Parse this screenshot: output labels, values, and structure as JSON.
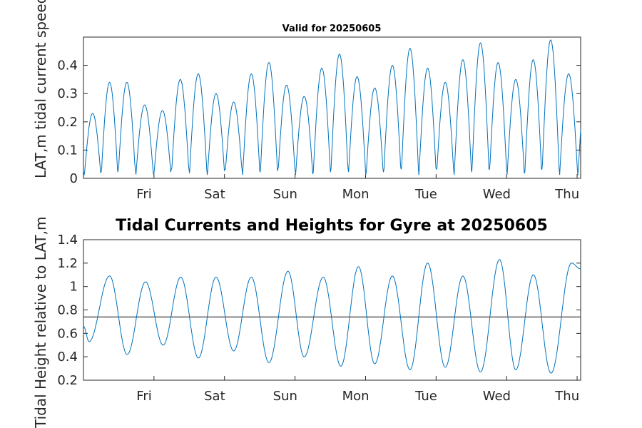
{
  "chart_data": [
    {
      "type": "line",
      "title": "Valid for 20250605",
      "xlabel": "",
      "ylabel": "LAT,m tidal current speed, kn",
      "x_ticklabels": [
        "Fri",
        "Sat",
        "Sun",
        "Mon",
        "Tue",
        "Wed",
        "Thu"
      ],
      "x_range_days": [
        0,
        7.05
      ],
      "ylim": [
        0,
        0.5
      ],
      "y_ticks": [
        0,
        0.1,
        0.2,
        0.3,
        0.4
      ],
      "y_ticklabels": [
        "0",
        "0.1",
        "0.2",
        "0.3",
        "0.4"
      ],
      "grid": false,
      "line_color": "#0072BD",
      "series": [
        {
          "x_day": [
            0.13,
            0.37,
            0.61,
            0.87,
            1.12,
            1.37,
            1.63,
            1.88,
            2.13,
            2.38,
            2.63,
            2.88,
            3.13,
            3.38,
            3.63,
            3.88,
            4.13,
            4.38,
            4.63,
            4.88,
            5.13,
            5.38,
            5.63,
            5.88,
            6.13,
            6.38,
            6.62,
            6.88
          ],
          "peak_speed": [
            0.23,
            0.34,
            0.34,
            0.26,
            0.24,
            0.35,
            0.37,
            0.3,
            0.27,
            0.37,
            0.41,
            0.33,
            0.29,
            0.39,
            0.44,
            0.36,
            0.32,
            0.4,
            0.46,
            0.39,
            0.34,
            0.42,
            0.48,
            0.41,
            0.35,
            0.42,
            0.49,
            0.37
          ]
        }
      ]
    },
    {
      "type": "line",
      "title": "Tidal Currents and Heights for Gyre at 20250605",
      "xlabel": "",
      "ylabel": "Tidal Height relative to LAT,m",
      "x_ticklabels": [
        "Fri",
        "Sat",
        "Sun",
        "Mon",
        "Tue",
        "Wed",
        "Thu"
      ],
      "x_range_days": [
        0,
        7.05
      ],
      "ylim": [
        0.2,
        1.4
      ],
      "y_ticks": [
        0.2,
        0.4,
        0.6,
        0.8,
        1,
        1.2,
        1.4
      ],
      "y_ticklabels": [
        "0.2",
        "0.4",
        "0.6",
        "0.8",
        "1",
        "1.2",
        "1.4"
      ],
      "grid": false,
      "line_color": "#0072BD",
      "reference_line": {
        "value": 0.74,
        "color": "#3a3a3a"
      },
      "series": [
        {
          "extremes_x_day": [
            0,
            0.08,
            0.37,
            0.62,
            0.88,
            1.13,
            1.38,
            1.63,
            1.88,
            2.13,
            2.38,
            2.63,
            2.9,
            3.13,
            3.4,
            3.65,
            3.9,
            4.13,
            4.38,
            4.63,
            4.88,
            5.13,
            5.38,
            5.63,
            5.9,
            6.13,
            6.38,
            6.63,
            6.92,
            7.05
          ],
          "extremes_height": [
            0.66,
            0.53,
            1.09,
            0.42,
            1.04,
            0.5,
            1.08,
            0.39,
            1.08,
            0.45,
            1.08,
            0.35,
            1.13,
            0.4,
            1.08,
            0.32,
            1.17,
            0.34,
            1.09,
            0.29,
            1.2,
            0.31,
            1.09,
            0.27,
            1.23,
            0.29,
            1.1,
            0.26,
            1.2,
            1.15
          ]
        }
      ]
    }
  ]
}
